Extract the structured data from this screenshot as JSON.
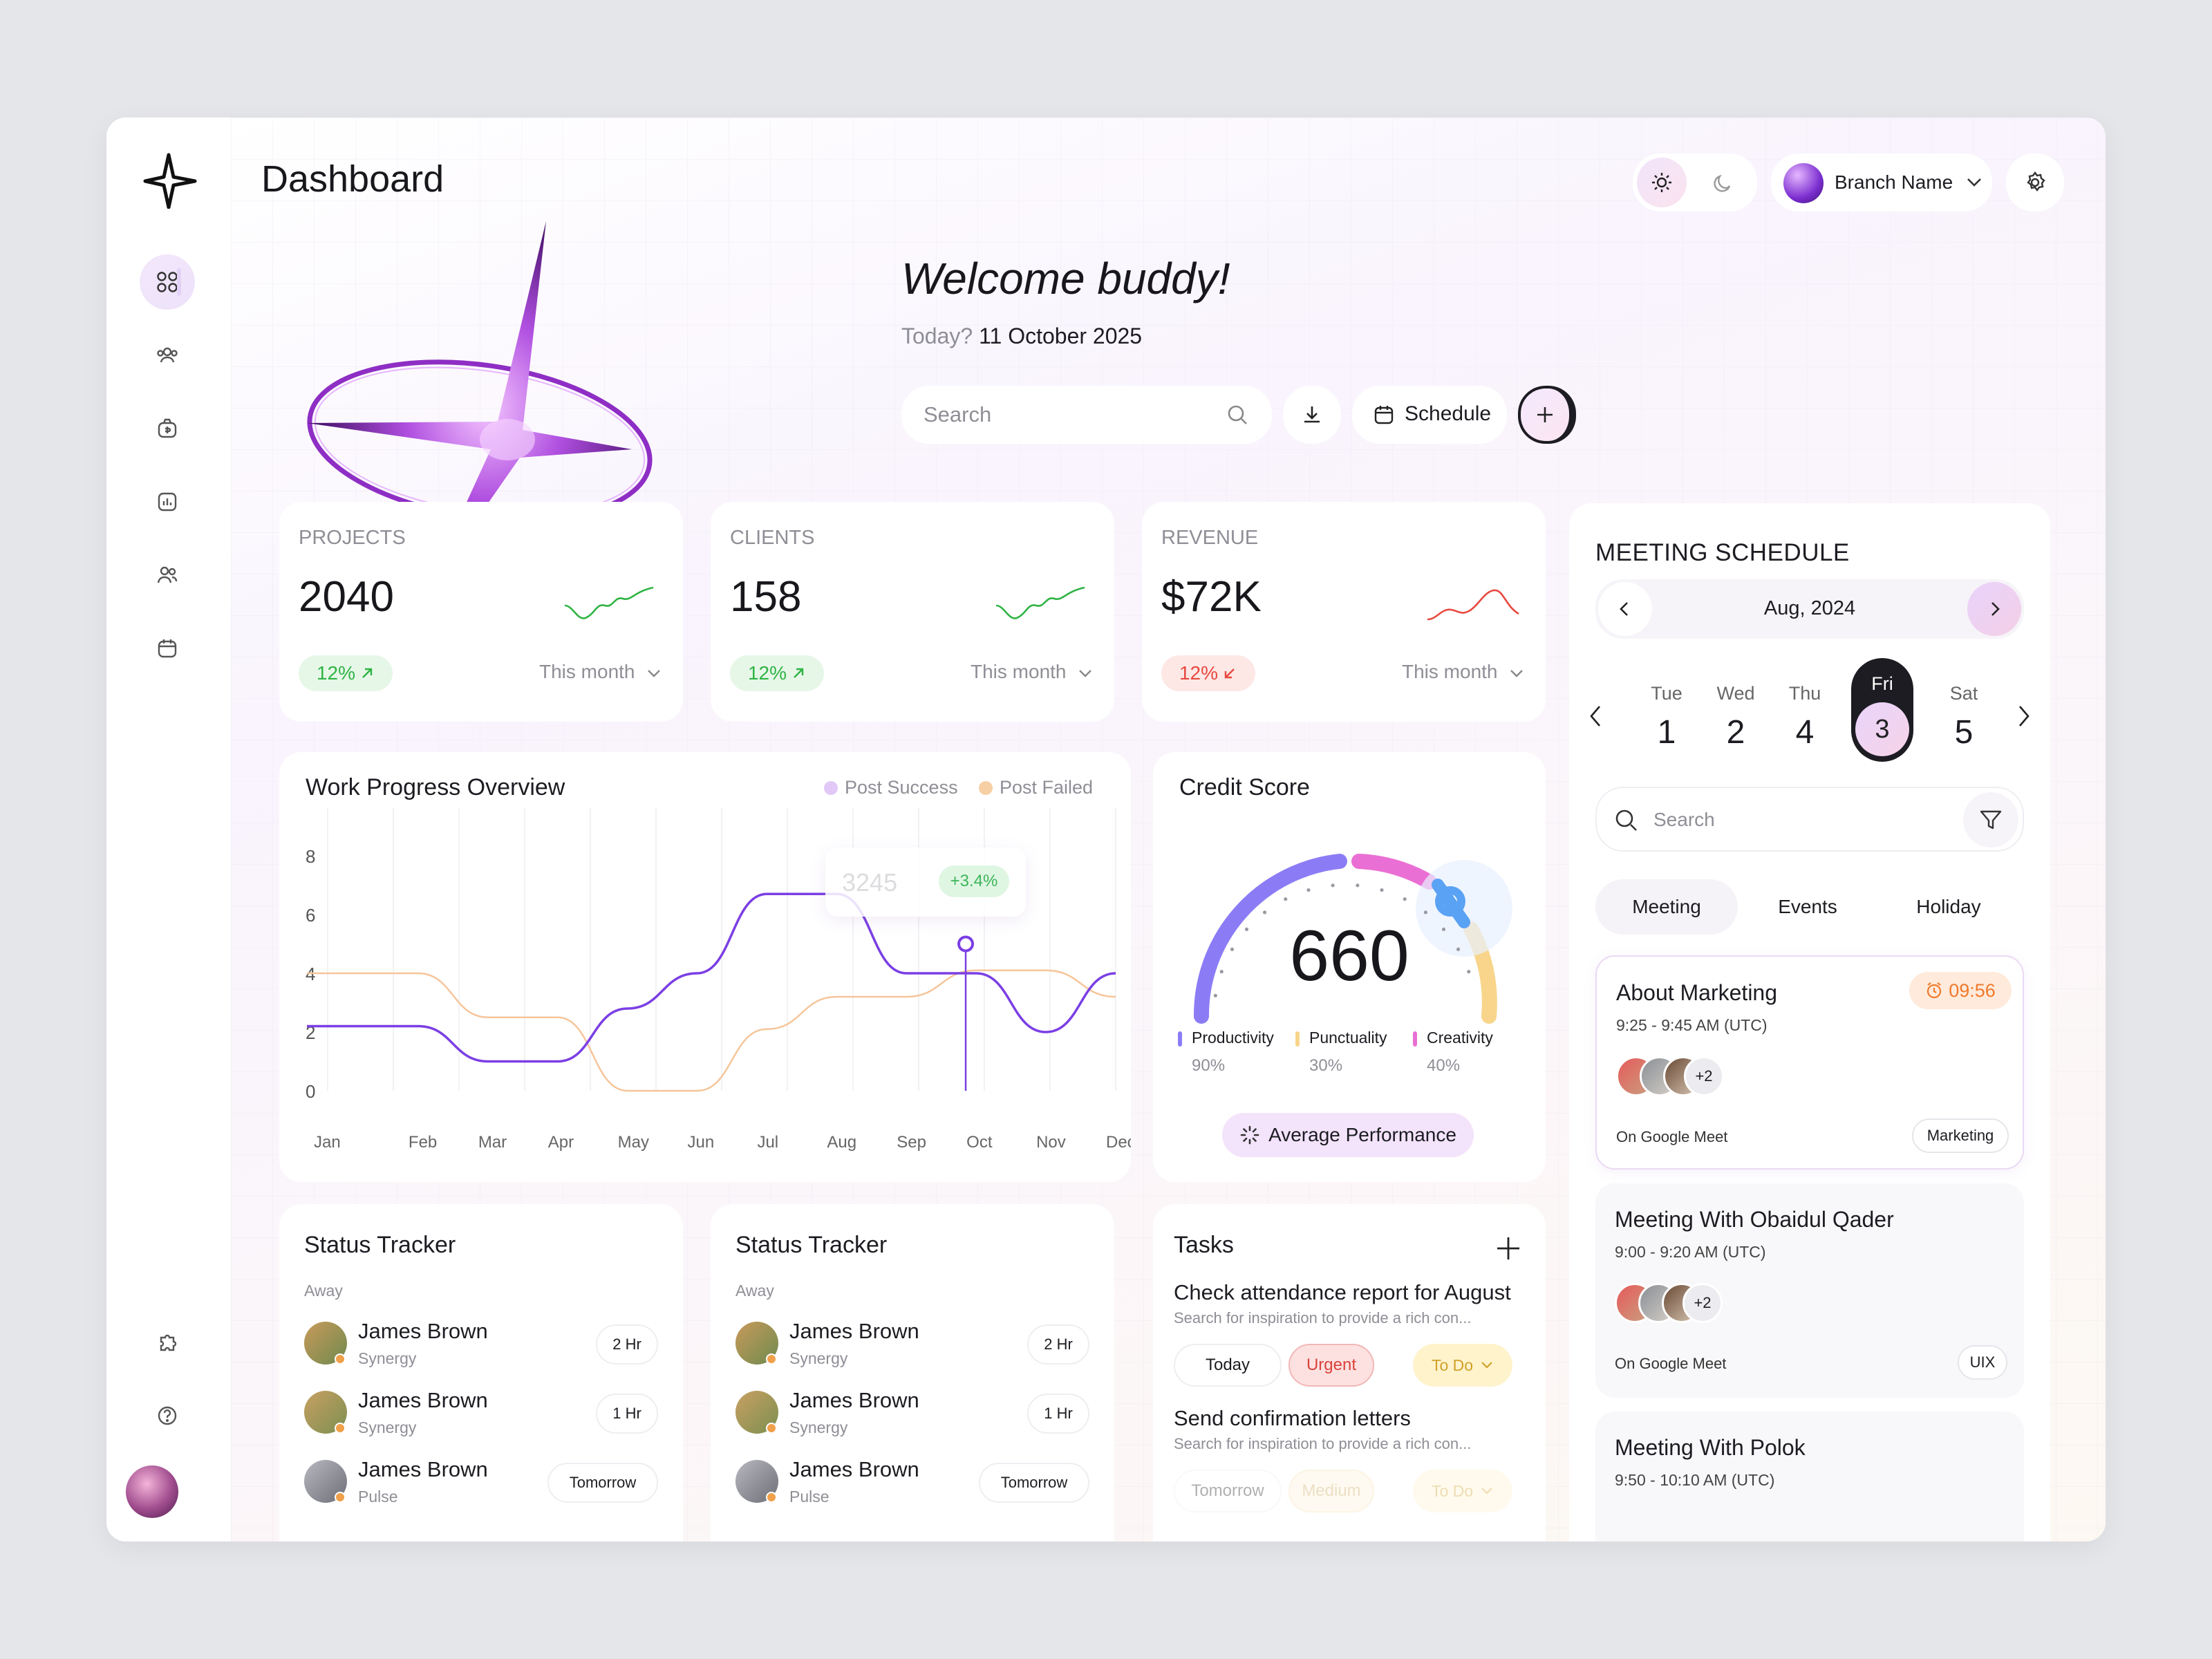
{
  "header": {
    "title": "Dashboard",
    "branch": "Branch Name"
  },
  "welcome": {
    "title": "Welcome buddy!",
    "today_label": "Today?",
    "date": "11 October 2025",
    "search_placeholder": "Search",
    "schedule_label": "Schedule"
  },
  "stats": [
    {
      "label": "PROJECTS",
      "value": "2040",
      "change": "12%",
      "period": "This month",
      "trend": "up",
      "color": "#2fb344"
    },
    {
      "label": "CLIENTS",
      "value": "158",
      "change": "12%",
      "period": "This month",
      "trend": "up",
      "color": "#2fb344"
    },
    {
      "label": "REVENUE",
      "value": "$72K",
      "change": "12%",
      "period": "This month",
      "trend": "down",
      "color": "#e8483f"
    }
  ],
  "work_progress": {
    "title": "Work Progress Overview",
    "legend": [
      "Post  Success",
      "Post Failed"
    ],
    "tooltip": {
      "value": "3245",
      "change": "+3.4%"
    },
    "chart_data": {
      "type": "line",
      "categories": [
        "Jan",
        "Feb",
        "Mar",
        "Apr",
        "May",
        "Jun",
        "Jul",
        "Aug",
        "Sep",
        "Oct",
        "Nov",
        "Dec"
      ],
      "yticks": [
        "8",
        "6",
        "4",
        "2",
        "0"
      ],
      "ylim": [
        0,
        8
      ],
      "series": [
        {
          "name": "Post  Success",
          "color": "#7b3fe4",
          "values": [
            2.2,
            2.2,
            1.0,
            1.0,
            2.8,
            4.0,
            6.7,
            6.7,
            4.0,
            4.0,
            2.0,
            4.0
          ]
        },
        {
          "name": "Post Failed",
          "color": "#f6c59a",
          "values": [
            4.0,
            4.0,
            2.5,
            2.5,
            0.0,
            0.0,
            2.1,
            3.2,
            3.2,
            4.1,
            4.1,
            3.2
          ]
        }
      ]
    }
  },
  "credit": {
    "title": "Credit Score",
    "score": "660",
    "avg_label": "Average Performance",
    "metrics": [
      {
        "label": "Productivity",
        "value": "90%",
        "color": "#8b7cf6"
      },
      {
        "label": "Punctuality",
        "value": "30%",
        "color": "#f8d58a"
      },
      {
        "label": "Creativity",
        "value": "40%",
        "color": "#ea6fd4"
      }
    ]
  },
  "status_trackers": [
    {
      "title": "Status Tracker",
      "group": "Away",
      "people": [
        {
          "name": "James Brown",
          "company": "Synergy",
          "time": "2 Hr"
        },
        {
          "name": "James Brown",
          "company": "Synergy",
          "time": "1 Hr"
        },
        {
          "name": "James Brown",
          "company": "Pulse",
          "time": "Tomorrow"
        }
      ]
    },
    {
      "title": "Status Tracker",
      "group": "Away",
      "people": [
        {
          "name": "James Brown",
          "company": "Synergy",
          "time": "2 Hr"
        },
        {
          "name": "James Brown",
          "company": "Synergy",
          "time": "1 Hr"
        },
        {
          "name": "James Brown",
          "company": "Pulse",
          "time": "Tomorrow"
        }
      ]
    }
  ],
  "tasks": {
    "title": "Tasks",
    "items": [
      {
        "title": "Check attendance report for August",
        "desc": "Search for inspiration to provide a rich con...",
        "due": "Today",
        "priority": "Urgent",
        "status": "To Do"
      },
      {
        "title": "Send confirmation letters",
        "desc": "Search for inspiration to provide a rich con...",
        "due": "Tomorrow",
        "priority": "Medium",
        "status": "To Do"
      }
    ]
  },
  "meetings": {
    "title": "MEETING SCHEDULE",
    "month": "Aug, 2024",
    "days": [
      {
        "d": "Tue",
        "n": "1"
      },
      {
        "d": "Wed",
        "n": "2"
      },
      {
        "d": "Thu",
        "n": "4"
      },
      {
        "d": "Fri",
        "n": "3"
      },
      {
        "d": "Sat",
        "n": "5"
      }
    ],
    "search_placeholder": "Search",
    "tabs": [
      "Meeting",
      "Events",
      "Holiday"
    ],
    "items": [
      {
        "title": "About Marketing",
        "time": "9:25 - 9:45 AM (UTC)",
        "countdown": "09:56",
        "extra": "+2",
        "platform": "On Google Meet",
        "tag": "Marketing"
      },
      {
        "title": "Meeting With Obaidul Qader",
        "time": "9:00 - 9:20 AM (UTC)",
        "extra": "+2",
        "platform": "On Google Meet",
        "tag": "UIX"
      },
      {
        "title": "Meeting With Polok",
        "time": "9:50 - 10:10 AM (UTC)"
      }
    ]
  }
}
